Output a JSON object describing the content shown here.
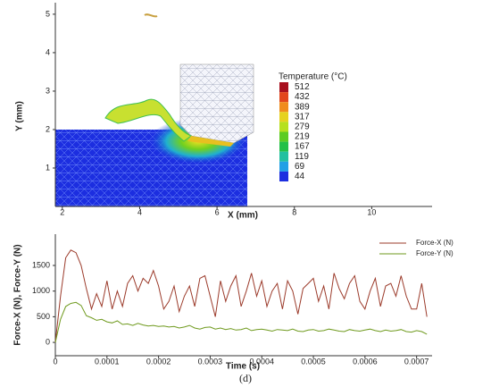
{
  "chart_data": [
    {
      "type": "contour",
      "xlabel": "X (mm)",
      "ylabel": "Y (mm)",
      "xlim": [
        1.82,
        11.56
      ],
      "xticks": [
        2,
        4,
        6,
        8,
        10
      ],
      "ylim": [
        0,
        5.3
      ],
      "yticks": [
        1,
        2,
        3,
        4,
        5
      ],
      "legend_title": "Temperature (°C)",
      "levels": [
        512,
        432,
        389,
        317,
        279,
        219,
        167,
        119,
        69,
        44
      ],
      "level_colors": [
        "#a8101e",
        "#e2461c",
        "#f08c1c",
        "#e6d21e",
        "#b6e01e",
        "#5ccc22",
        "#22c048",
        "#22c0a0",
        "#22a0e6",
        "#1c2ee0"
      ]
    },
    {
      "type": "line",
      "xlabel": "Time (s)",
      "ylabel": "Force-X (N), Force-Y (N)",
      "xlim": [
        0,
        0.00073
      ],
      "xticks": [
        0,
        0.0001,
        0.0002,
        0.0003,
        0.0004,
        0.0005,
        0.0006,
        0.0007
      ],
      "ylim": [
        -260,
        2110
      ],
      "yticks": [
        0,
        500,
        1000,
        1500
      ],
      "legend": "upper right",
      "x": [
        0,
        1e-05,
        2e-05,
        3e-05,
        4e-05,
        5e-05,
        6e-05,
        7e-05,
        8e-05,
        9e-05,
        0.0001,
        0.00011,
        0.00012,
        0.00013,
        0.00014,
        0.00015,
        0.00016,
        0.00017,
        0.00018,
        0.00019,
        0.0002,
        0.00021,
        0.00022,
        0.00023,
        0.00024,
        0.00025,
        0.00026,
        0.00027,
        0.00028,
        0.00029,
        0.0003,
        0.00031,
        0.00032,
        0.00033,
        0.00034,
        0.00035,
        0.00036,
        0.00037,
        0.00038,
        0.00039,
        0.0004,
        0.00041,
        0.00042,
        0.00043,
        0.00044,
        0.00045,
        0.00046,
        0.00047,
        0.00048,
        0.00049,
        0.0005,
        0.00051,
        0.00052,
        0.00053,
        0.00054,
        0.00055,
        0.00056,
        0.00057,
        0.00058,
        0.00059,
        0.0006,
        0.00061,
        0.00062,
        0.00063,
        0.00064,
        0.00065,
        0.00066,
        0.00067,
        0.00068,
        0.00069,
        0.0007,
        0.00071,
        0.00072
      ],
      "series": [
        {
          "name": "Force-X (N)",
          "color": "#9b3a2a",
          "values": [
            0,
            900,
            1650,
            1800,
            1750,
            1500,
            1050,
            650,
            950,
            700,
            1200,
            650,
            1000,
            700,
            1150,
            1300,
            1000,
            1250,
            1150,
            1400,
            1100,
            650,
            800,
            1100,
            600,
            900,
            1100,
            700,
            1250,
            1300,
            900,
            500,
            1200,
            800,
            1100,
            1300,
            700,
            1000,
            1350,
            900,
            1200,
            700,
            1000,
            1150,
            650,
            1200,
            1000,
            550,
            1050,
            1150,
            1250,
            800,
            1100,
            650,
            1350,
            1050,
            850,
            1150,
            1300,
            800,
            650,
            1000,
            1250,
            700,
            1100,
            1150,
            900,
            1300,
            900,
            650,
            650,
            1150,
            500
          ]
        },
        {
          "name": "Force-Y (N)",
          "color": "#6f9a1e",
          "values": [
            0,
            450,
            700,
            760,
            780,
            720,
            520,
            480,
            430,
            450,
            400,
            380,
            420,
            350,
            360,
            330,
            370,
            340,
            320,
            330,
            310,
            320,
            300,
            310,
            280,
            300,
            330,
            280,
            260,
            290,
            300,
            260,
            280,
            250,
            270,
            240,
            250,
            280,
            230,
            250,
            260,
            240,
            220,
            250,
            240,
            230,
            260,
            220,
            210,
            240,
            250,
            220,
            230,
            260,
            240,
            220,
            210,
            250,
            230,
            220,
            240,
            260,
            230,
            210,
            240,
            220,
            230,
            250,
            210,
            200,
            230,
            210,
            160
          ]
        }
      ]
    }
  ],
  "caption": "(d)"
}
